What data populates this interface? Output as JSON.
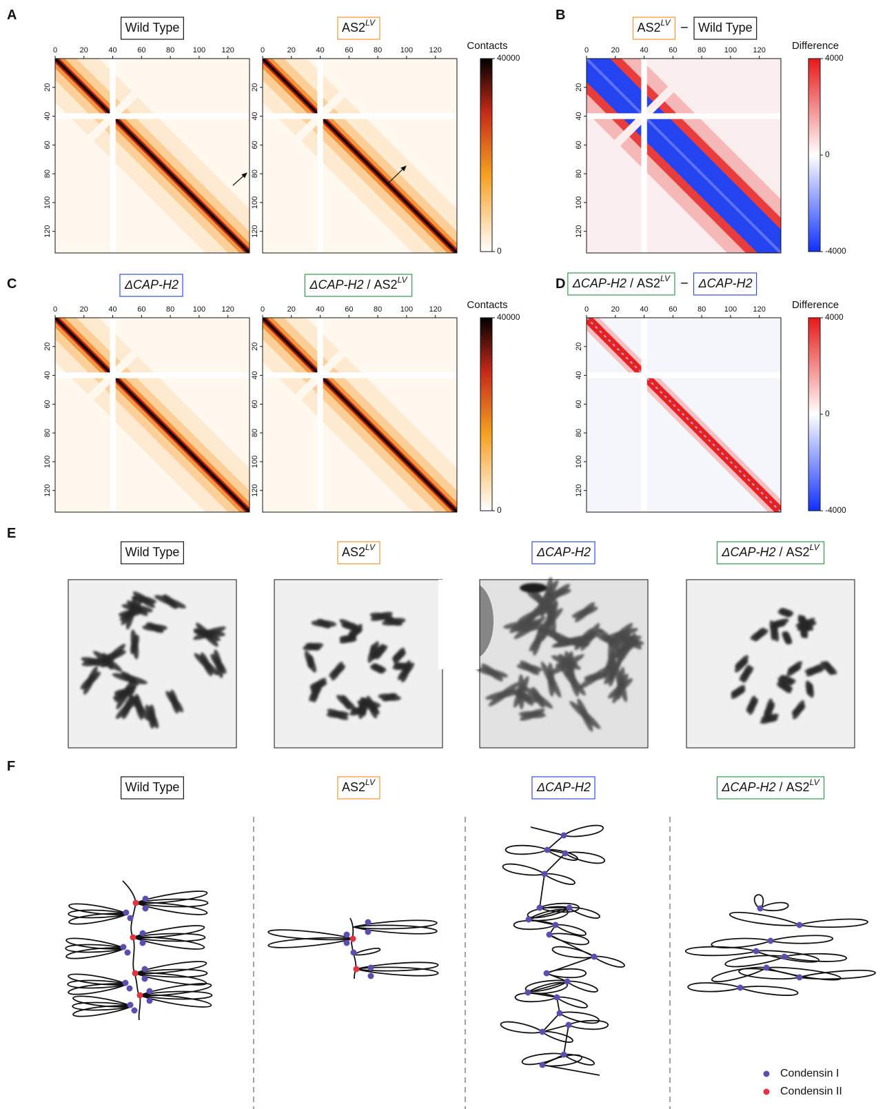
{
  "panel_letters": [
    "A",
    "B",
    "C",
    "D",
    "E",
    "F"
  ],
  "genotypes": [
    {
      "name": "Wild Type",
      "color": "#111111"
    },
    {
      "name": "AS2",
      "sup": "LV",
      "color": "#f0962e"
    },
    {
      "name": "ΔCAP-H2",
      "italic": true,
      "color": "#2f4fd6"
    },
    {
      "name": "ΔCAP-H2",
      "italic": true,
      "separator": "/",
      "name2": "AS2",
      "sup": "LV",
      "color": "#2e9a4e"
    }
  ],
  "minus": "−",
  "heatmap_axes": {
    "xlim": [
      0,
      135
    ],
    "ylim": [
      0,
      135
    ],
    "xticks": [
      0,
      20,
      40,
      60,
      80,
      100,
      120
    ],
    "yticks": [
      20,
      40,
      60,
      80,
      100,
      120
    ]
  },
  "contacts_scale": {
    "label": "Contacts",
    "lim": [
      0,
      40000
    ],
    "ticks": [
      0,
      40000
    ]
  },
  "difference_scale": {
    "label": "Difference",
    "lim": [
      -4000,
      4000
    ],
    "ticks": [
      -4000,
      0,
      4000
    ]
  },
  "legend": [
    {
      "name": "Condensin I",
      "color": "#5a4fae"
    },
    {
      "name": "Condensin II",
      "color": "#e23440"
    }
  ]
}
